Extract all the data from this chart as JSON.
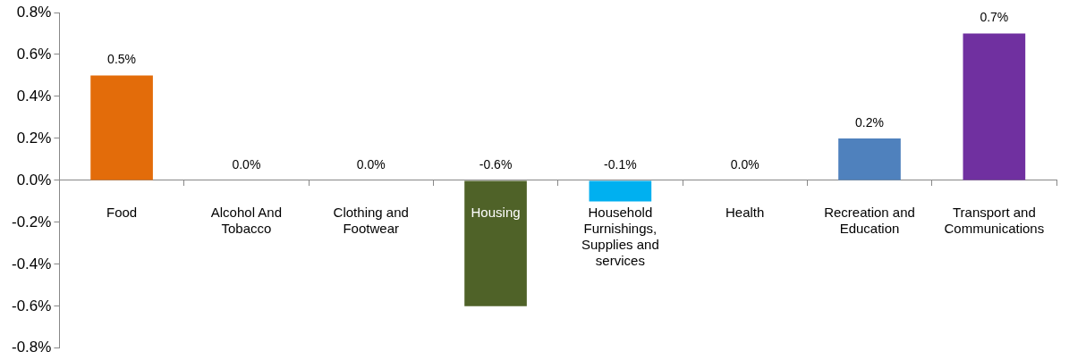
{
  "chart_data": {
    "type": "bar",
    "categories": [
      "Food",
      "Alcohol And Tobacco",
      "Clothing and Footwear",
      "Housing",
      "Household Furnishings, Supplies and services",
      "Health",
      "Recreation and Education",
      "Transport and Communications"
    ],
    "values": [
      0.5,
      0,
      0,
      -0.6,
      -0.1,
      0,
      0.2,
      0.7
    ],
    "colors": [
      "#e36c0a",
      null,
      null,
      "#4f6228",
      "#00b0f0",
      null,
      "#4f81bd",
      "#7030a0"
    ],
    "value_labels": [
      "0.5%",
      "0.0%",
      "0.0%",
      "-0.6%",
      "-0.1%",
      "0.0%",
      "0.2%",
      "0.7%"
    ],
    "ylim": [
      -0.8,
      0.8
    ],
    "yticks": [
      {
        "value": -0.8,
        "label": "-0.8%"
      },
      {
        "value": -0.6,
        "label": "-0.6%"
      },
      {
        "value": -0.4,
        "label": "-0.4%"
      },
      {
        "value": -0.2,
        "label": "-0.2%"
      },
      {
        "value": 0,
        "label": "0.0%"
      },
      {
        "value": 0.2,
        "label": "0.2%"
      },
      {
        "value": 0.4,
        "label": "0.4%"
      },
      {
        "value": 0.6,
        "label": "0.6%"
      },
      {
        "value": 0.8,
        "label": "0.8%"
      }
    ],
    "grid": false,
    "legend": false
  }
}
